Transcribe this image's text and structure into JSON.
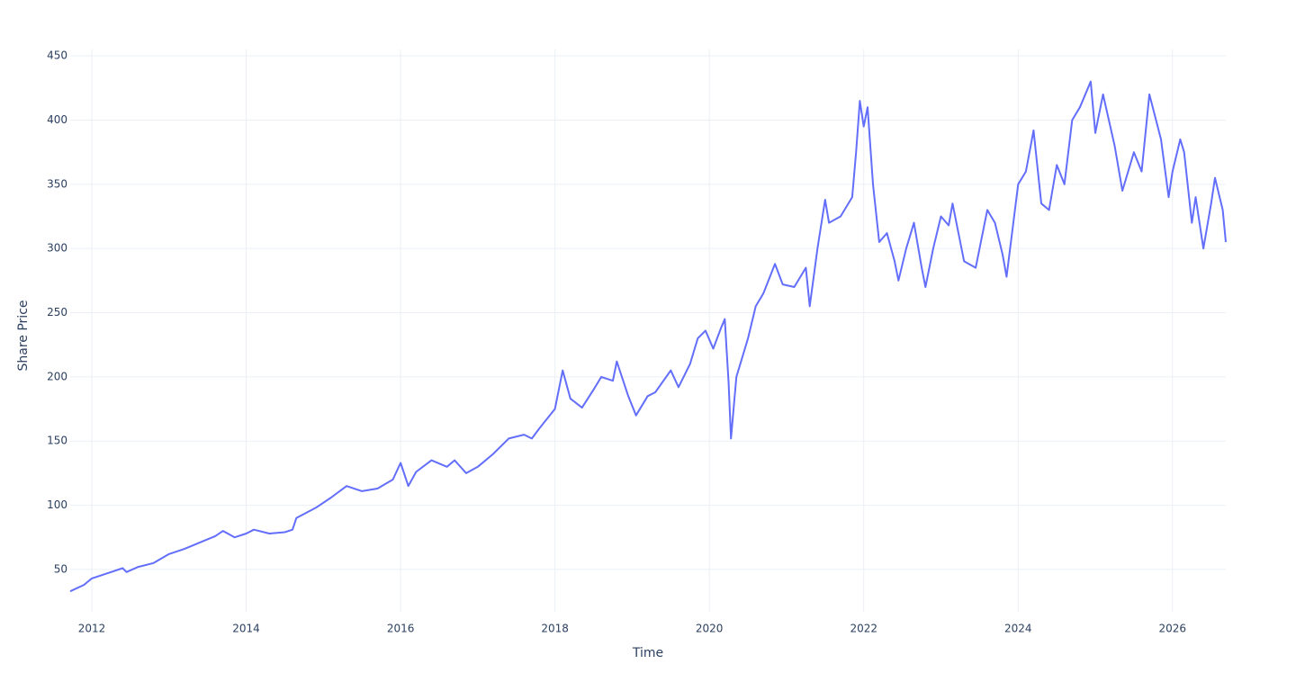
{
  "chart_data": {
    "type": "line",
    "x_label": "Time",
    "y_label": "Share Price",
    "x": [
      2011.72,
      2011.9,
      2012.0,
      2012.2,
      2012.4,
      2012.45,
      2012.6,
      2012.8,
      2013.0,
      2013.2,
      2013.4,
      2013.6,
      2013.7,
      2013.85,
      2014.0,
      2014.1,
      2014.3,
      2014.5,
      2014.6,
      2014.65,
      2014.9,
      2015.1,
      2015.3,
      2015.5,
      2015.7,
      2015.9,
      2016.0,
      2016.1,
      2016.2,
      2016.4,
      2016.6,
      2016.7,
      2016.85,
      2017.0,
      2017.2,
      2017.4,
      2017.6,
      2017.7,
      2017.8,
      2018.0,
      2018.1,
      2018.2,
      2018.35,
      2018.5,
      2018.6,
      2018.75,
      2018.8,
      2018.95,
      2019.05,
      2019.2,
      2019.3,
      2019.5,
      2019.6,
      2019.75,
      2019.85,
      2019.95,
      2020.05,
      2020.15,
      2020.2,
      2020.25,
      2020.28,
      2020.35,
      2020.5,
      2020.6,
      2020.7,
      2020.85,
      2020.95,
      2021.1,
      2021.25,
      2021.3,
      2021.4,
      2021.5,
      2021.55,
      2021.7,
      2021.85,
      2021.9,
      2021.95,
      2022.0,
      2022.05,
      2022.12,
      2022.2,
      2022.3,
      2022.4,
      2022.45,
      2022.55,
      2022.65,
      2022.75,
      2022.8,
      2022.9,
      2023.0,
      2023.1,
      2023.15,
      2023.3,
      2023.45,
      2023.6,
      2023.7,
      2023.8,
      2023.85,
      2024.0,
      2024.1,
      2024.2,
      2024.3,
      2024.4,
      2024.5,
      2024.6,
      2024.7,
      2024.8,
      2024.94,
      2025.0,
      2025.1,
      2025.25,
      2025.35,
      2025.5,
      2025.6,
      2025.7,
      2025.85,
      2025.95,
      2026.0,
      2026.1,
      2026.15,
      2026.25,
      2026.3,
      2026.4,
      2026.5,
      2026.55,
      2026.65,
      2026.69
    ],
    "series": [
      {
        "name": "Share Price",
        "color": "#636efa",
        "values": [
          33,
          38,
          43,
          47,
          51,
          48,
          52,
          55,
          62,
          66,
          71,
          76,
          80,
          75,
          78,
          81,
          78,
          79,
          81,
          90,
          98,
          106,
          115,
          111,
          113,
          120,
          133,
          115,
          126,
          135,
          130,
          135,
          125,
          130,
          140,
          152,
          155,
          152,
          160,
          175,
          205,
          183,
          176,
          190,
          200,
          197,
          212,
          185,
          170,
          185,
          188,
          205,
          192,
          210,
          230,
          236,
          222,
          238,
          245,
          195,
          152,
          200,
          230,
          255,
          265,
          288,
          272,
          270,
          285,
          255,
          300,
          338,
          320,
          325,
          340,
          375,
          415,
          395,
          410,
          350,
          305,
          312,
          290,
          275,
          300,
          320,
          285,
          270,
          300,
          325,
          318,
          335,
          290,
          285,
          330,
          320,
          295,
          278,
          350,
          360,
          392,
          335,
          330,
          365,
          350,
          400,
          410,
          430,
          390,
          420,
          380,
          345,
          375,
          360,
          420,
          385,
          340,
          360,
          385,
          375,
          320,
          340,
          300,
          335,
          355,
          330,
          305
        ]
      }
    ],
    "xlim": [
      2011.72,
      2026.69
    ],
    "xticks": [
      2012,
      2014,
      2016,
      2018,
      2020,
      2022,
      2024,
      2026
    ],
    "ylim": [
      17,
      455
    ],
    "yticks": [
      50,
      100,
      150,
      200,
      250,
      300,
      350,
      400,
      450
    ],
    "grid": true
  }
}
